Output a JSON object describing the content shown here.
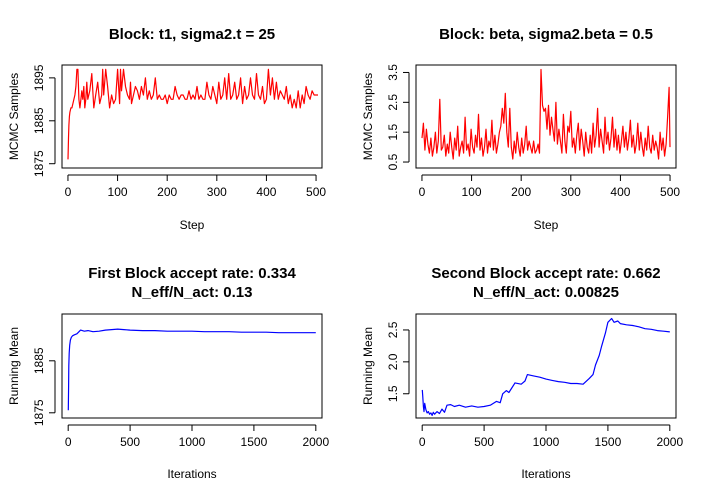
{
  "chart_data": [
    {
      "type": "line",
      "title": "Block: t1, sigma2.t = 25",
      "xlabel": "Step",
      "ylabel": "MCMC Samples",
      "color": "#ff0000",
      "xlim": [
        -12,
        512
      ],
      "ylim": [
        1874,
        1898
      ],
      "x_ticks": [
        0,
        100,
        200,
        300,
        400,
        500
      ],
      "y_ticks": [
        1875,
        1885,
        1895
      ],
      "series": [
        {
          "x": [
            0,
            1,
            2,
            3,
            4,
            6,
            8,
            10,
            12,
            14,
            16,
            18,
            20,
            22,
            24,
            26,
            28,
            30,
            32,
            34,
            36,
            38,
            40,
            44,
            48,
            52,
            56,
            60,
            64,
            68,
            70,
            72,
            76,
            80,
            84,
            88,
            92,
            96,
            100,
            104,
            106,
            108,
            112,
            116,
            120,
            124,
            126,
            128,
            132,
            136,
            140,
            144,
            148,
            152,
            156,
            160,
            164,
            168,
            172,
            176,
            180,
            184,
            188,
            192,
            196,
            200,
            204,
            208,
            212,
            216,
            220,
            224,
            228,
            232,
            236,
            240,
            244,
            248,
            252,
            256,
            260,
            264,
            268,
            272,
            276,
            280,
            284,
            288,
            292,
            296,
            300,
            304,
            308,
            312,
            316,
            320,
            324,
            328,
            332,
            336,
            340,
            344,
            348,
            352,
            356,
            360,
            364,
            368,
            372,
            376,
            380,
            384,
            388,
            392,
            396,
            400,
            404,
            408,
            412,
            416,
            420,
            424,
            428,
            432,
            436,
            440,
            444,
            448,
            452,
            456,
            460,
            464,
            468,
            472,
            476,
            480,
            484,
            488,
            492,
            496,
            500,
            504
          ],
          "y": [
            1876,
            1881,
            1884,
            1886,
            1887,
            1888,
            1888,
            1889,
            1890,
            1891,
            1893,
            1897,
            1897,
            1890,
            1888,
            1890,
            1892,
            1890,
            1893,
            1888,
            1890,
            1894,
            1890,
            1892,
            1896,
            1888,
            1891,
            1894,
            1889,
            1891,
            1897,
            1891,
            1897,
            1893,
            1888,
            1891,
            1889,
            1890,
            1897,
            1889,
            1897,
            1892,
            1897,
            1893,
            1891,
            1890,
            1894,
            1889,
            1891,
            1893,
            1892,
            1890,
            1893,
            1891,
            1895,
            1890,
            1892,
            1890,
            1891,
            1895,
            1890,
            1891,
            1890,
            1890,
            1891,
            1889,
            1891,
            1890,
            1890,
            1893,
            1891,
            1890,
            1891,
            1891,
            1890,
            1890,
            1892,
            1890,
            1891,
            1890,
            1893,
            1890,
            1891,
            1890,
            1890,
            1894,
            1891,
            1890,
            1893,
            1891,
            1889,
            1894,
            1890,
            1891,
            1895,
            1890,
            1896,
            1890,
            1891,
            1894,
            1890,
            1891,
            1895,
            1889,
            1893,
            1890,
            1891,
            1895,
            1891,
            1890,
            1896,
            1891,
            1890,
            1893,
            1889,
            1890,
            1897,
            1891,
            1895,
            1890,
            1894,
            1890,
            1892,
            1891,
            1890,
            1893,
            1889,
            1891,
            1888,
            1890,
            1888,
            1892,
            1888,
            1891,
            1889,
            1893,
            1891,
            1890,
            1892,
            1891,
            1891,
            1891
          ]
        }
      ]
    },
    {
      "type": "line",
      "title": "Block: beta, sigma2.beta = 0.5",
      "xlabel": "Step",
      "ylabel": "MCMC Samples",
      "color": "#ff0000",
      "xlim": [
        -12,
        512
      ],
      "ylim": [
        0.3,
        3.75
      ],
      "x_ticks": [
        0,
        100,
        200,
        300,
        400,
        500
      ],
      "y_ticks": [
        0.5,
        1.5,
        2.5,
        3.5
      ],
      "y_tick_labels": [
        "0.5",
        "1.5",
        "2.5",
        "3.5"
      ],
      "series": [
        {
          "x": [
            0,
            3,
            6,
            9,
            12,
            15,
            18,
            21,
            24,
            27,
            30,
            33,
            36,
            39,
            42,
            45,
            48,
            51,
            54,
            57,
            60,
            63,
            66,
            69,
            72,
            75,
            78,
            81,
            84,
            87,
            90,
            93,
            96,
            99,
            102,
            105,
            108,
            111,
            114,
            117,
            120,
            123,
            126,
            129,
            132,
            135,
            138,
            141,
            144,
            147,
            150,
            153,
            156,
            159,
            162,
            165,
            168,
            171,
            174,
            177,
            180,
            183,
            186,
            189,
            192,
            195,
            198,
            201,
            204,
            207,
            210,
            213,
            216,
            219,
            222,
            225,
            228,
            231,
            234,
            237,
            240,
            243,
            246,
            249,
            252,
            255,
            258,
            261,
            264,
            267,
            270,
            273,
            276,
            279,
            282,
            285,
            288,
            291,
            294,
            297,
            300,
            303,
            306,
            309,
            312,
            315,
            318,
            321,
            324,
            327,
            330,
            333,
            336,
            339,
            342,
            345,
            348,
            351,
            354,
            357,
            360,
            363,
            366,
            369,
            372,
            375,
            378,
            381,
            384,
            387,
            390,
            393,
            396,
            399,
            402,
            405,
            408,
            411,
            414,
            417,
            420,
            423,
            426,
            429,
            432,
            435,
            438,
            441,
            444,
            447,
            450,
            453,
            456,
            459,
            462,
            465,
            468,
            471,
            474,
            477,
            480,
            483,
            486,
            489,
            492,
            495,
            498,
            500
          ],
          "y": [
            1.3,
            1.8,
            0.9,
            1.6,
            1.1,
            0.8,
            1.3,
            0.7,
            1.0,
            1.5,
            0.8,
            1.2,
            2.6,
            0.9,
            1.0,
            1.4,
            0.7,
            1.1,
            0.8,
            1.5,
            1.0,
            0.6,
            1.3,
            0.9,
            1.7,
            0.7,
            1.0,
            1.2,
            0.8,
            2.0,
            0.9,
            1.1,
            0.7,
            1.6,
            1.0,
            0.8,
            1.4,
            1.0,
            2.1,
            0.9,
            1.3,
            0.7,
            1.0,
            1.6,
            0.8,
            1.2,
            1.0,
            1.9,
            0.9,
            1.4,
            0.8,
            1.1,
            1.5,
            1.7,
            2.3,
            1.8,
            2.8,
            1.5,
            1.0,
            2.3,
            1.0,
            0.6,
            1.2,
            0.8,
            1.5,
            1.0,
            0.7,
            1.3,
            0.8,
            1.1,
            1.7,
            0.9,
            1.2,
            1.0,
            0.8,
            1.2,
            0.8,
            0.9,
            1.1,
            0.8,
            3.6,
            2.4,
            2.2,
            2.3,
            1.6,
            2.4,
            1.4,
            2.0,
            1.6,
            1.2,
            2.5,
            1.1,
            1.6,
            1.2,
            0.8,
            2.1,
            1.2,
            0.8,
            1.7,
            1.5,
            2.2,
            1.0,
            1.3,
            0.8,
            1.4,
            1.8,
            0.9,
            1.6,
            1.2,
            0.7,
            1.5,
            1.0,
            0.8,
            1.4,
            0.8,
            1.8,
            1.0,
            1.4,
            2.3,
            1.0,
            1.6,
            1.2,
            0.8,
            2.0,
            1.1,
            1.5,
            0.9,
            1.3,
            2.0,
            1.0,
            1.6,
            0.9,
            1.4,
            0.8,
            1.2,
            1.7,
            1.0,
            1.5,
            0.9,
            1.3,
            1.9,
            1.0,
            1.4,
            0.8,
            1.1,
            1.8,
            0.9,
            1.5,
            1.0,
            0.7,
            1.3,
            0.9,
            1.7,
            1.0,
            0.8,
            1.4,
            0.9,
            1.2,
            1.0,
            0.6,
            1.5,
            0.9,
            1.3,
            0.7,
            1.1,
            2.0,
            3.0,
            1.0
          ]
        }
      ]
    },
    {
      "type": "line",
      "title": [
        "First Block accept rate: 0.334",
        "N_eff/N_act: 0.13"
      ],
      "xlabel": "Iterations",
      "ylabel": "Running Mean",
      "color": "#0000ff",
      "xlim": [
        -50,
        2050
      ],
      "ylim": [
        1874,
        1894
      ],
      "x_ticks": [
        0,
        500,
        1000,
        1500,
        2000
      ],
      "y_ticks": [
        1875,
        1885
      ],
      "series": [
        {
          "x": [
            1,
            3,
            5,
            8,
            12,
            18,
            25,
            35,
            50,
            70,
            100,
            130,
            160,
            200,
            250,
            300,
            350,
            400,
            450,
            500,
            600,
            700,
            800,
            900,
            1000,
            1100,
            1200,
            1300,
            1400,
            1500,
            1600,
            1700,
            1800,
            1900,
            2000
          ],
          "y": [
            1875.5,
            1880,
            1884,
            1886.5,
            1888,
            1889,
            1889.5,
            1889.8,
            1890,
            1890.2,
            1890.9,
            1890.7,
            1890.8,
            1890.6,
            1890.7,
            1890.9,
            1891.0,
            1891.1,
            1891.0,
            1890.9,
            1890.8,
            1890.8,
            1890.7,
            1890.7,
            1890.7,
            1890.6,
            1890.6,
            1890.6,
            1890.5,
            1890.5,
            1890.5,
            1890.4,
            1890.4,
            1890.4,
            1890.4
          ]
        }
      ]
    },
    {
      "type": "line",
      "title": [
        "Second Block accept rate: 0.662",
        "N_eff/N_act: 0.00825"
      ],
      "xlabel": "Iterations",
      "ylabel": "Running Mean",
      "color": "#0000ff",
      "xlim": [
        -50,
        2050
      ],
      "ylim": [
        1.12,
        2.75
      ],
      "x_ticks": [
        0,
        500,
        1000,
        1500,
        2000
      ],
      "y_ticks": [
        1.5,
        2.0,
        2.5
      ],
      "y_tick_labels": [
        "1.5",
        "2.0",
        "2.5"
      ],
      "series": [
        {
          "x": [
            1,
            5,
            10,
            15,
            20,
            30,
            40,
            50,
            60,
            70,
            80,
            90,
            100,
            120,
            140,
            160,
            180,
            200,
            230,
            260,
            300,
            350,
            400,
            450,
            500,
            550,
            600,
            630,
            650,
            680,
            700,
            750,
            800,
            830,
            850,
            900,
            950,
            1000,
            1050,
            1100,
            1150,
            1200,
            1250,
            1300,
            1350,
            1380,
            1400,
            1430,
            1450,
            1480,
            1500,
            1530,
            1550,
            1580,
            1600,
            1650,
            1700,
            1750,
            1800,
            1850,
            1900,
            1950,
            2000
          ],
          "y": [
            1.56,
            1.45,
            1.3,
            1.22,
            1.35,
            1.25,
            1.2,
            1.22,
            1.18,
            1.2,
            1.16,
            1.21,
            1.18,
            1.22,
            1.19,
            1.26,
            1.21,
            1.32,
            1.33,
            1.3,
            1.32,
            1.29,
            1.31,
            1.29,
            1.3,
            1.32,
            1.38,
            1.36,
            1.5,
            1.55,
            1.52,
            1.67,
            1.65,
            1.7,
            1.8,
            1.78,
            1.76,
            1.73,
            1.71,
            1.69,
            1.68,
            1.66,
            1.66,
            1.65,
            1.74,
            1.8,
            1.95,
            2.1,
            2.25,
            2.45,
            2.62,
            2.68,
            2.62,
            2.64,
            2.6,
            2.58,
            2.57,
            2.55,
            2.52,
            2.51,
            2.49,
            2.48,
            2.47
          ]
        }
      ]
    }
  ]
}
